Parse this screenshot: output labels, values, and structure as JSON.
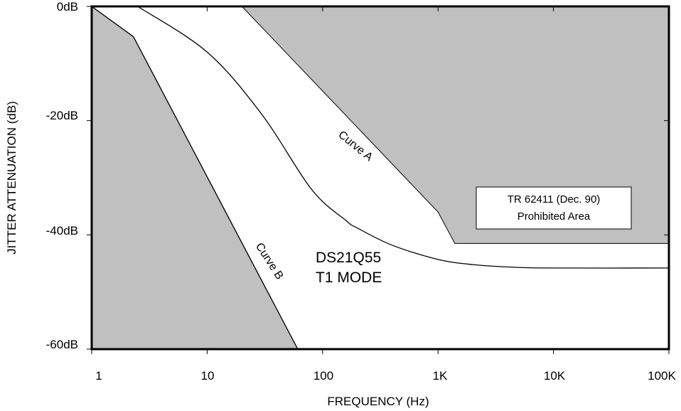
{
  "chart_data": {
    "type": "line",
    "title": "",
    "xlabel": "FREQUENCY (Hz)",
    "ylabel": "JITTER ATTENUATION (dB)",
    "xscale": "log",
    "xlim": [
      1,
      100000
    ],
    "ylim": [
      -60,
      0
    ],
    "x_ticks": [
      1,
      10,
      100,
      1000,
      10000,
      100000
    ],
    "x_tick_labels": [
      "1",
      "10",
      "100",
      "1K",
      "10K",
      "100K"
    ],
    "y_ticks": [
      0,
      -20,
      -40,
      -60
    ],
    "y_tick_labels": [
      "0dB",
      "-20dB",
      "-40dB",
      "-60dB"
    ],
    "grid": false,
    "series": [
      {
        "name": "Curve A",
        "color": "#000000",
        "x": [
          2.5,
          10,
          30,
          80,
          160,
          200,
          400,
          1000,
          2000,
          5000,
          10000,
          100000
        ],
        "y": [
          0,
          -8,
          -19,
          -32,
          -37.5,
          -38.8,
          -41.8,
          -44.3,
          -45.2,
          -45.7,
          -45.8,
          -45.8
        ]
      },
      {
        "name": "Curve B",
        "color": "#000000",
        "x": [
          1,
          2.3,
          61
        ],
        "y": [
          0,
          -5.3,
          -60
        ]
      }
    ],
    "prohibited_regions": [
      {
        "name": "TR 62411 (Dec. 90) Prohibited Area",
        "fill": "#c0c0c0",
        "boundary_x": [
          20,
          1000,
          1400,
          100000
        ],
        "boundary_y": [
          0,
          -36,
          -41.5,
          -41.5
        ]
      },
      {
        "name": "low-frequency prohibited area",
        "fill": "#c0c0c0",
        "boundary_x": [
          1,
          2.3,
          61
        ],
        "boundary_y": [
          0,
          -5.3,
          -60
        ]
      }
    ],
    "annotations": [
      {
        "text": "Curve A"
      },
      {
        "text": "Curve B"
      },
      {
        "lines": [
          "DS21Q55",
          "T1 MODE"
        ]
      },
      {
        "lines": [
          "TR 62411 (Dec. 90)",
          "Prohibited Area"
        ]
      }
    ]
  }
}
